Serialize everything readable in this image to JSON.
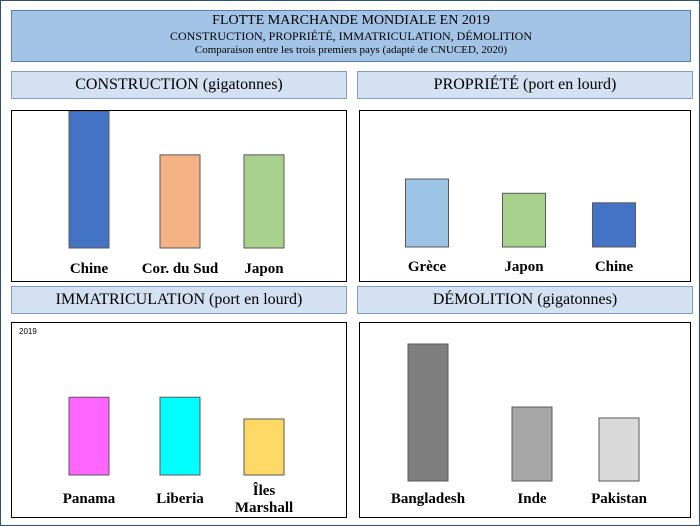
{
  "header": {
    "title": "FLOTTE MARCHANDE MONDIALE EN 2019",
    "subtitle": "CONSTRUCTION, PROPRIÉTÉ, IMMATRICULATION, DÉMOLITION",
    "note": "Comparaison entre les trois premiers pays (adapté de CNUCED, 2020)"
  },
  "chart_data": [
    {
      "type": "bar",
      "title": "CONSTRUCTION (gigatonnes)",
      "categories": [
        "Chine",
        "Cor. du Sud",
        "Japon"
      ],
      "values": [
        100,
        68,
        68
      ],
      "colors": [
        "#4472c4",
        "#f4b183",
        "#a9d18e"
      ],
      "ylim": [
        0,
        100
      ],
      "annotation": ""
    },
    {
      "type": "bar",
      "title": "PROPRIÉTÉ (port en lourd)",
      "categories": [
        "Grèce",
        "Japon",
        "Chine"
      ],
      "values": [
        100,
        79,
        65
      ],
      "colors": [
        "#9dc3e6",
        "#a9d18e",
        "#4472c4"
      ],
      "ylim": [
        0,
        200
      ],
      "annotation": ""
    },
    {
      "type": "bar",
      "title": "IMMATRICULATION (port en lourd)",
      "categories": [
        "Panama",
        "Liberia",
        "Îles Marshall"
      ],
      "values": [
        100,
        100,
        72
      ],
      "colors": [
        "#ff66ff",
        "#00ffff",
        "#ffd966"
      ],
      "ylim": [
        0,
        180
      ],
      "annotation": "2019"
    },
    {
      "type": "bar",
      "title": "DÉMOLITION (gigatonnes)",
      "categories": [
        "Bangladesh",
        "Inde",
        "Pakistan"
      ],
      "values": [
        100,
        54,
        46
      ],
      "colors": [
        "#7f7f7f",
        "#a6a6a6",
        "#d9d9d9"
      ],
      "ylim": [
        0,
        100
      ],
      "annotation": ""
    }
  ]
}
